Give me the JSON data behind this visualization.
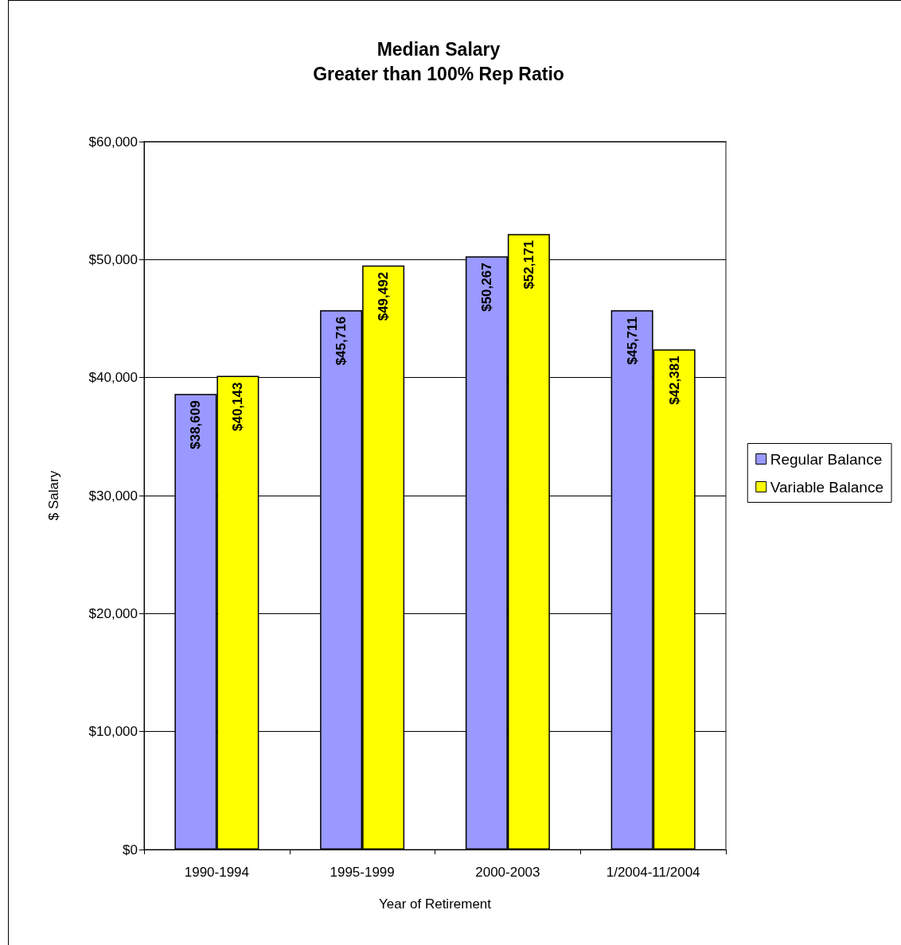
{
  "chart_data": {
    "type": "bar",
    "title": "Median Salary",
    "subtitle": "Greater than 100% Rep Ratio",
    "xlabel": "Year of Retirement",
    "ylabel": "$ Salary",
    "categories": [
      "1990-1994",
      "1995-1999",
      "2000-2003",
      "1/2004-11/2004"
    ],
    "series": [
      {
        "name": "Regular Balance",
        "color": "#9999ff",
        "values": [
          38609,
          45716,
          50267,
          45711
        ],
        "value_labels": [
          "$38,609",
          "$45,716",
          "$50,267",
          "$45,711"
        ]
      },
      {
        "name": "Variable Balance",
        "color": "#ffff00",
        "values": [
          40143,
          49492,
          52171,
          42381
        ],
        "value_labels": [
          "$40,143",
          "$49,492",
          "$52,171",
          "$42,381"
        ]
      }
    ],
    "ylim": [
      0,
      60000
    ],
    "yticks": [
      {
        "value": 0,
        "label": "$0"
      },
      {
        "value": 10000,
        "label": "$10,000"
      },
      {
        "value": 20000,
        "label": "$20,000"
      },
      {
        "value": 30000,
        "label": "$30,000"
      },
      {
        "value": 40000,
        "label": "$40,000"
      },
      {
        "value": 50000,
        "label": "$50,000"
      },
      {
        "value": 60000,
        "label": "$60,000"
      }
    ],
    "grid": "y",
    "legend": "right"
  }
}
